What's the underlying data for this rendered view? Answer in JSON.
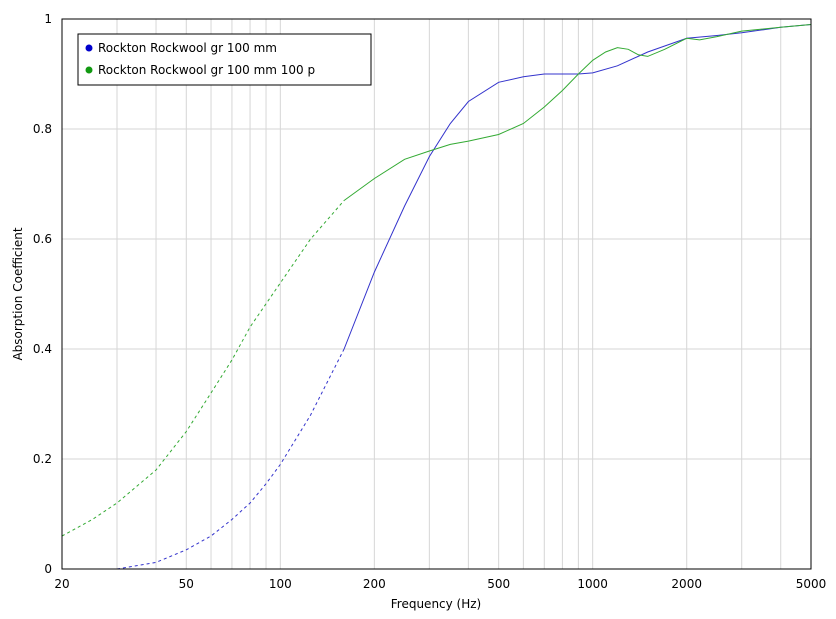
{
  "chart_data": {
    "type": "line",
    "xlabel": "Frequency (Hz)",
    "ylabel": "Absorption Coefficient",
    "xscale": "log",
    "xlim": [
      20,
      5000
    ],
    "ylim": [
      0,
      1
    ],
    "grid": true,
    "legend_position": "top-left",
    "x_ticks": [
      20,
      50,
      100,
      200,
      500,
      1000,
      2000,
      5000
    ],
    "x_minor": [
      30,
      40,
      60,
      70,
      80,
      90,
      300,
      400,
      600,
      700,
      800,
      900,
      3000,
      4000
    ],
    "y_ticks": [
      0,
      0.2,
      0.4,
      0.6,
      0.8,
      1
    ],
    "y_tick_labels": [
      "0",
      "0.2",
      "0.4",
      "0.6",
      "0.8",
      "1"
    ],
    "series": [
      {
        "name": "Rockton Rockwool gr 100 mm",
        "color": "#3333cc",
        "dashed_until": 160,
        "points": [
          [
            30,
            0
          ],
          [
            40,
            0.012
          ],
          [
            50,
            0.035
          ],
          [
            60,
            0.06
          ],
          [
            70,
            0.09
          ],
          [
            80,
            0.12
          ],
          [
            90,
            0.155
          ],
          [
            100,
            0.19
          ],
          [
            125,
            0.28
          ],
          [
            160,
            0.4
          ],
          [
            200,
            0.54
          ],
          [
            250,
            0.66
          ],
          [
            300,
            0.75
          ],
          [
            350,
            0.81
          ],
          [
            400,
            0.85
          ],
          [
            500,
            0.885
          ],
          [
            600,
            0.895
          ],
          [
            700,
            0.9
          ],
          [
            800,
            0.9
          ],
          [
            900,
            0.9
          ],
          [
            1000,
            0.902
          ],
          [
            1200,
            0.915
          ],
          [
            1500,
            0.94
          ],
          [
            2000,
            0.965
          ],
          [
            2500,
            0.97
          ],
          [
            3000,
            0.975
          ],
          [
            4000,
            0.985
          ],
          [
            5000,
            0.99
          ]
        ]
      },
      {
        "name": "Rockton Rockwool gr 100 mm 100 p",
        "color": "#33aa33",
        "dashed_until": 170,
        "points": [
          [
            20,
            0.06
          ],
          [
            25,
            0.09
          ],
          [
            30,
            0.12
          ],
          [
            40,
            0.18
          ],
          [
            50,
            0.25
          ],
          [
            60,
            0.32
          ],
          [
            70,
            0.38
          ],
          [
            80,
            0.44
          ],
          [
            100,
            0.52
          ],
          [
            125,
            0.6
          ],
          [
            160,
            0.67
          ],
          [
            200,
            0.71
          ],
          [
            250,
            0.745
          ],
          [
            300,
            0.76
          ],
          [
            350,
            0.772
          ],
          [
            400,
            0.778
          ],
          [
            500,
            0.79
          ],
          [
            600,
            0.81
          ],
          [
            700,
            0.84
          ],
          [
            800,
            0.87
          ],
          [
            900,
            0.9
          ],
          [
            1000,
            0.925
          ],
          [
            1100,
            0.94
          ],
          [
            1200,
            0.948
          ],
          [
            1300,
            0.945
          ],
          [
            1400,
            0.935
          ],
          [
            1500,
            0.932
          ],
          [
            1700,
            0.945
          ],
          [
            2000,
            0.965
          ],
          [
            2200,
            0.962
          ],
          [
            2500,
            0.968
          ],
          [
            3000,
            0.978
          ],
          [
            4000,
            0.985
          ],
          [
            5000,
            0.99
          ]
        ]
      }
    ]
  }
}
